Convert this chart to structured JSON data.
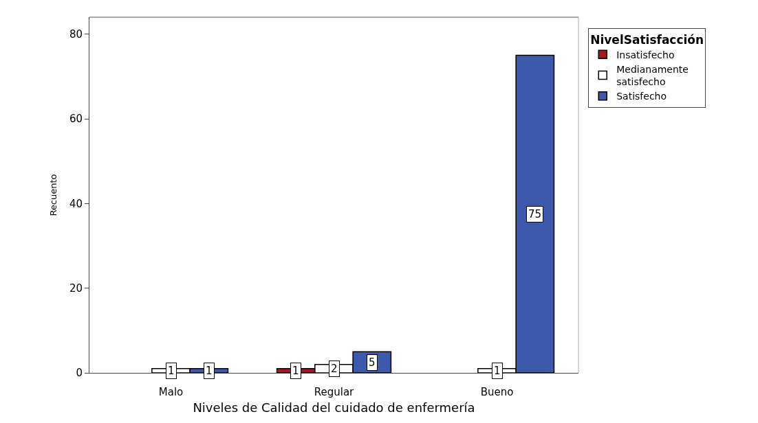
{
  "chart_data": {
    "type": "bar",
    "xlabel": "Niveles de Calidad del cuidado de enfermería",
    "ylabel": "Recuento",
    "legend_title": "NivelSatisfacción",
    "categories": [
      "Malo",
      "Regular",
      "Bueno"
    ],
    "series": [
      {
        "name": "Insatisfecho",
        "color": "#a31a1a",
        "values": [
          null,
          1,
          null
        ]
      },
      {
        "name": "Medianamente satisfecho",
        "color": "#ffffff",
        "values": [
          1,
          2,
          1
        ]
      },
      {
        "name": "Satisfecho",
        "color": "#3d59ab",
        "values": [
          1,
          5,
          75
        ]
      }
    ],
    "ylim": [
      0,
      84
    ],
    "yticks": [
      0,
      20,
      40,
      60,
      80
    ],
    "legend": "top right",
    "data_labels": true
  }
}
